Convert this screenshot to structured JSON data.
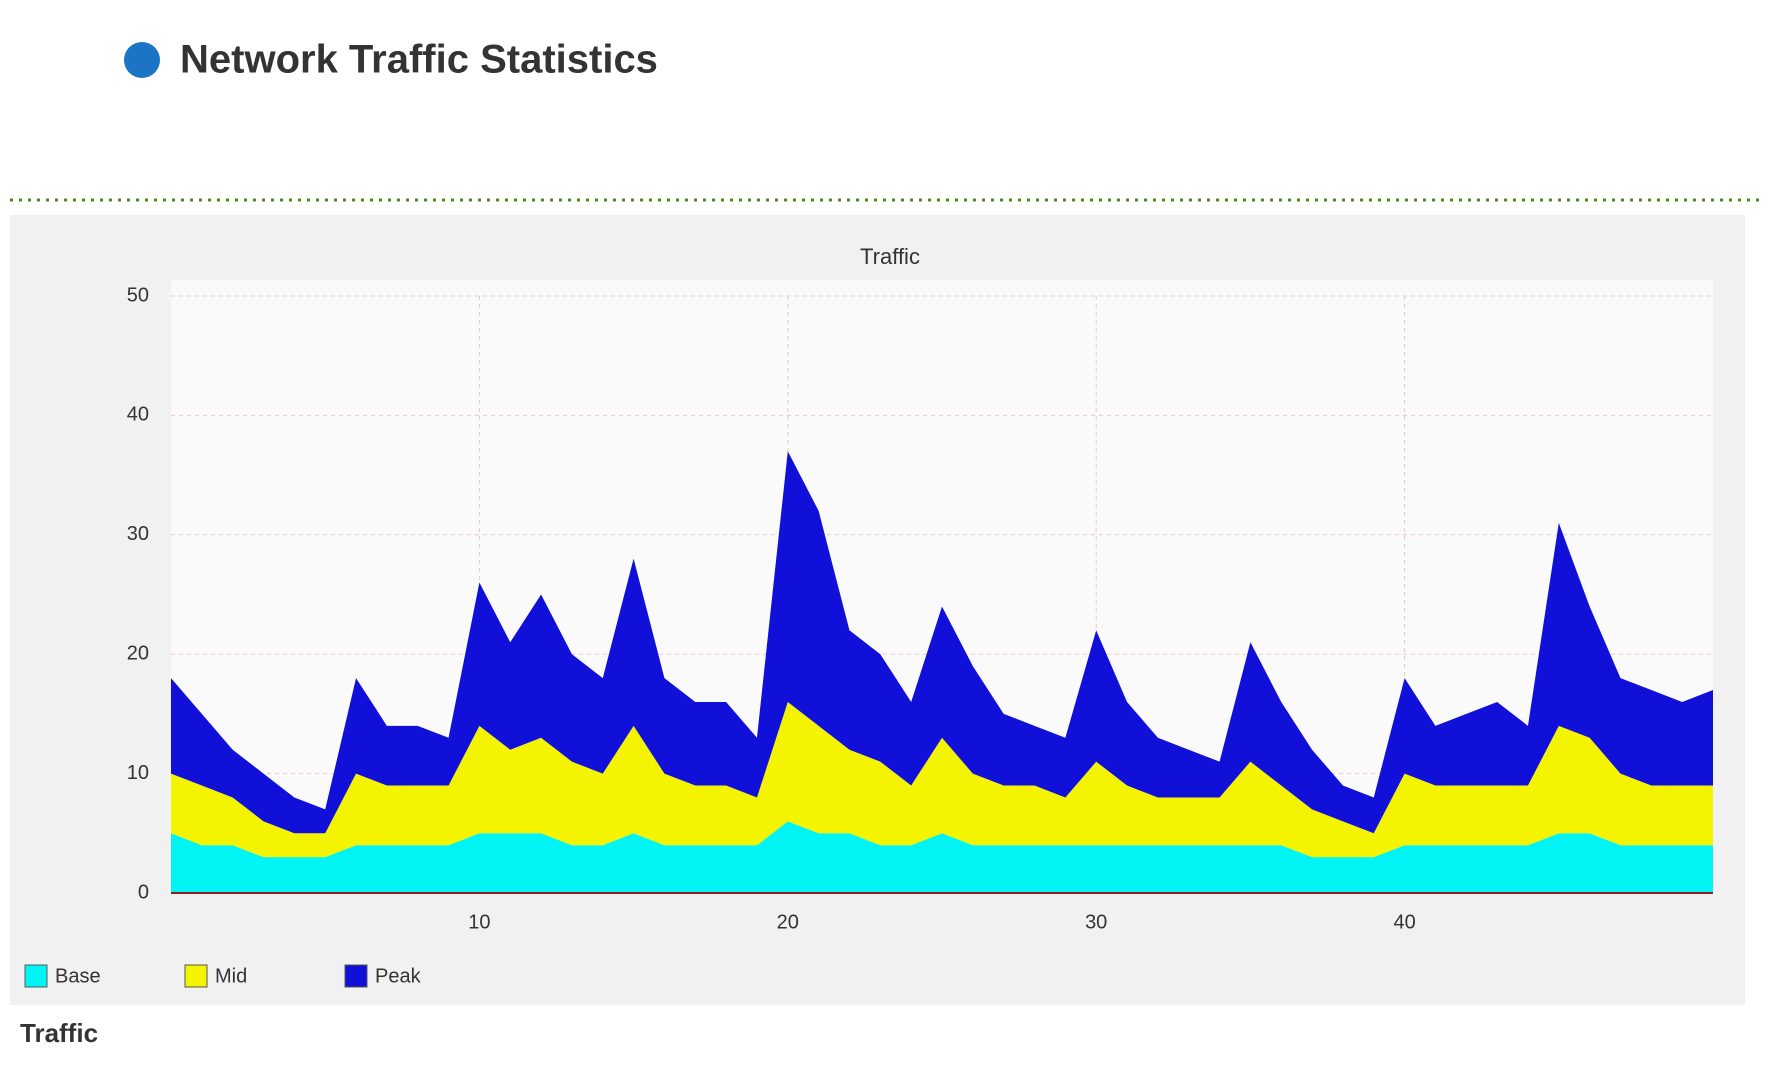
{
  "header": {
    "title": "Network Traffic Statistics"
  },
  "footer": {
    "note": "Traffic"
  },
  "chart_data": {
    "type": "stacked-area",
    "title": "Traffic",
    "x": [
      0,
      1,
      2,
      3,
      4,
      5,
      6,
      7,
      8,
      9,
      10,
      11,
      12,
      13,
      14,
      15,
      16,
      17,
      18,
      19,
      20,
      21,
      22,
      23,
      24,
      25,
      26,
      27,
      28,
      29,
      30,
      31,
      32,
      33,
      34,
      35,
      36,
      37,
      38,
      39,
      40,
      41,
      42,
      43,
      44,
      45,
      46,
      47,
      48,
      49,
      50
    ],
    "xlim": [
      0,
      50
    ],
    "xticks": [
      10,
      20,
      30,
      40
    ],
    "ylim": [
      0,
      50
    ],
    "yticks": [
      0,
      10,
      20,
      30,
      40,
      50
    ],
    "grid": true,
    "series": [
      {
        "name": "Base",
        "color": "#00f4f4",
        "values": [
          5,
          4,
          4,
          3,
          3,
          3,
          4,
          4,
          4,
          4,
          5,
          5,
          5,
          4,
          4,
          5,
          4,
          4,
          4,
          4,
          6,
          5,
          5,
          4,
          4,
          5,
          4,
          4,
          4,
          4,
          4,
          4,
          4,
          4,
          4,
          4,
          4,
          3,
          3,
          3,
          4,
          4,
          4,
          4,
          4,
          5,
          5,
          4,
          4,
          4,
          4
        ]
      },
      {
        "name": "Mid",
        "color": "#f4f400",
        "values": [
          5,
          5,
          4,
          3,
          2,
          2,
          6,
          5,
          5,
          5,
          9,
          7,
          8,
          7,
          6,
          9,
          6,
          5,
          5,
          4,
          10,
          9,
          7,
          7,
          5,
          8,
          6,
          5,
          5,
          4,
          7,
          5,
          4,
          4,
          4,
          7,
          5,
          4,
          3,
          2,
          6,
          5,
          5,
          5,
          5,
          9,
          8,
          6,
          5,
          5,
          5
        ]
      },
      {
        "name": "Peak",
        "color": "#1010d8",
        "values": [
          8,
          6,
          4,
          4,
          3,
          2,
          8,
          5,
          5,
          4,
          12,
          9,
          12,
          9,
          8,
          14,
          8,
          7,
          7,
          5,
          21,
          18,
          10,
          9,
          7,
          11,
          9,
          6,
          5,
          5,
          11,
          7,
          5,
          4,
          3,
          10,
          7,
          5,
          3,
          3,
          8,
          5,
          6,
          7,
          5,
          17,
          11,
          8,
          8,
          7,
          8
        ]
      }
    ]
  }
}
